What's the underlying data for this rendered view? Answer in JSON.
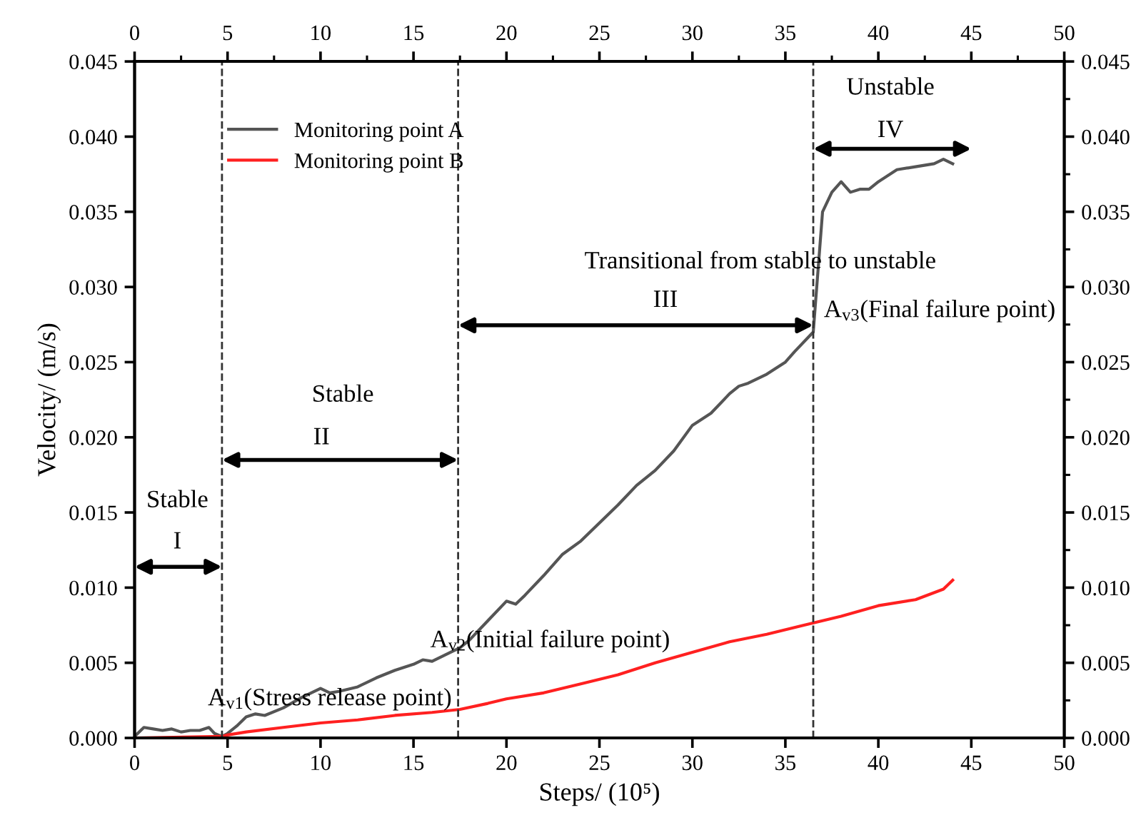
{
  "chart_data": {
    "type": "line",
    "xlabel": "Steps/ (10⁵)",
    "ylabel": "Velocity/ (m/s)",
    "xlim": [
      0,
      50
    ],
    "xticks": [
      0,
      5,
      10,
      15,
      20,
      25,
      30,
      35,
      40,
      45,
      50
    ],
    "x2lim": [
      0,
      50
    ],
    "x2ticks": [
      0,
      5,
      10,
      15,
      20,
      25,
      30,
      35,
      40,
      45,
      50
    ],
    "ylim": [
      0,
      0.045
    ],
    "yticks": [
      {
        "value": 0,
        "label": "0.000"
      },
      {
        "value": 0.005,
        "label": "0.005"
      },
      {
        "value": 0.01,
        "label": "0.010"
      },
      {
        "value": 0.015,
        "label": "0.015"
      },
      {
        "value": 0.02,
        "label": "0.020"
      },
      {
        "value": 0.025,
        "label": "0.025"
      },
      {
        "value": 0.03,
        "label": "0.030"
      },
      {
        "value": 0.035,
        "label": "0.035"
      },
      {
        "value": 0.04,
        "label": "0.040"
      },
      {
        "value": 0.045,
        "label": "0.045"
      }
    ],
    "y2lim": [
      0,
      0.045
    ],
    "y2ticks": [
      {
        "value": 0,
        "label": "0.000"
      },
      {
        "value": 0.005,
        "label": "0.005"
      },
      {
        "value": 0.01,
        "label": "0.010"
      },
      {
        "value": 0.015,
        "label": "0.015"
      },
      {
        "value": 0.02,
        "label": "0.020"
      },
      {
        "value": 0.025,
        "label": "0.025"
      },
      {
        "value": 0.03,
        "label": "0.030"
      },
      {
        "value": 0.035,
        "label": "0.035"
      },
      {
        "value": 0.04,
        "label": "0.040"
      },
      {
        "value": 0.045,
        "label": "0.045"
      }
    ],
    "grid": false,
    "legend": "top left",
    "line_style": "solid",
    "marker": "none",
    "series": [
      {
        "name": "Monitoring point A",
        "color": "#555555",
        "x": [
          0,
          0.5,
          1,
          1.5,
          2,
          2.5,
          3,
          3.5,
          4,
          4.3,
          4.7,
          5,
          5.5,
          6,
          6.5,
          7,
          8,
          9,
          10,
          10.5,
          11,
          12,
          13,
          14,
          15,
          15.5,
          16,
          17,
          17.5,
          18,
          19,
          20,
          20.5,
          21,
          22,
          23,
          24,
          25,
          26,
          27,
          28,
          29,
          30,
          31,
          32,
          32.5,
          33,
          34,
          35,
          35.5,
          36.5,
          37,
          37.5,
          38,
          38.5,
          39,
          39.5,
          40,
          41,
          42,
          43,
          43.5,
          44
        ],
        "values": [
          0.0001,
          0.0007,
          0.0006,
          0.0005,
          0.0006,
          0.0004,
          0.0005,
          0.0005,
          0.0007,
          0.0003,
          0.0001,
          0.0003,
          0.0008,
          0.0014,
          0.0016,
          0.0015,
          0.002,
          0.0027,
          0.0033,
          0.003,
          0.0031,
          0.0034,
          0.004,
          0.0045,
          0.0049,
          0.0052,
          0.0051,
          0.0057,
          0.006,
          0.0065,
          0.0078,
          0.0091,
          0.0089,
          0.0095,
          0.0108,
          0.0122,
          0.0131,
          0.0143,
          0.0155,
          0.0168,
          0.0178,
          0.0191,
          0.0208,
          0.0216,
          0.0229,
          0.0234,
          0.0236,
          0.0242,
          0.025,
          0.0257,
          0.027,
          0.035,
          0.0363,
          0.037,
          0.0363,
          0.0365,
          0.0365,
          0.037,
          0.0378,
          0.038,
          0.0382,
          0.0385,
          0.0382
        ]
      },
      {
        "name": "Monitoring point B",
        "color": "#ff2020",
        "x": [
          0,
          4.7,
          5,
          6,
          8,
          10,
          12,
          14,
          16,
          17.5,
          19,
          20,
          22,
          24,
          26,
          28,
          30,
          32,
          34,
          36,
          38,
          40,
          42,
          43.5,
          44
        ],
        "values": [
          0,
          0.0001,
          0.0002,
          0.0004,
          0.0007,
          0.001,
          0.0012,
          0.0015,
          0.0017,
          0.0019,
          0.0023,
          0.0026,
          0.003,
          0.0036,
          0.0042,
          0.005,
          0.0057,
          0.0064,
          0.0069,
          0.0075,
          0.0081,
          0.0088,
          0.0092,
          0.0099,
          0.0105
        ]
      }
    ],
    "ref_lines": [
      {
        "axis": "x",
        "value": 4.7,
        "color": "#333333",
        "line_style": "dashed"
      },
      {
        "axis": "x",
        "value": 17.4,
        "color": "#333333",
        "line_style": "dashed"
      },
      {
        "axis": "x",
        "value": 36.5,
        "color": "#333333",
        "line_style": "dashed"
      }
    ],
    "annotations": [
      "Stable",
      "I",
      "Stable",
      "II",
      "Transitional from stable to unstable",
      "III",
      "Unstable",
      "IV",
      "A$_{v1}$(Stress release point)",
      "A$_{v2}$(Initial failure point)",
      "A$_{v3}$(Final failure point)"
    ]
  }
}
